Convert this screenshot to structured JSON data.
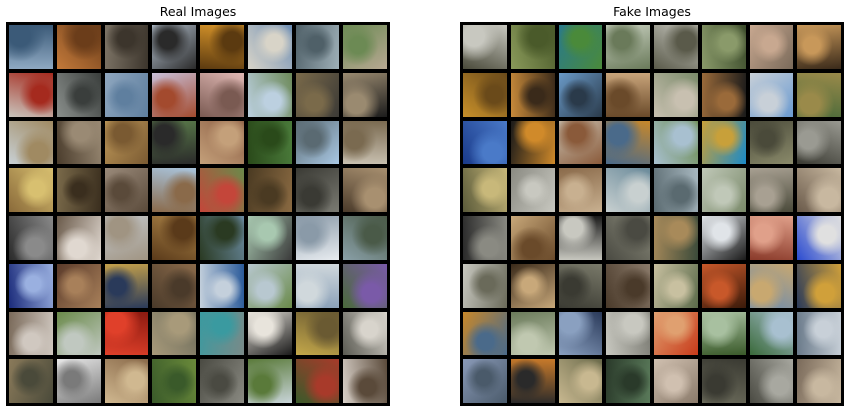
{
  "panels": [
    {
      "title": "Real Images",
      "tiles": [
        [
          "#8fa9c2",
          "#3b5a78"
        ],
        [
          "#c47a3a",
          "#6b3d1a"
        ],
        [
          "#7d7466",
          "#3c352c"
        ],
        [
          "#b9c6d4",
          "#2a2a2a"
        ],
        [
          "#d9962a",
          "#5b3a10"
        ],
        [
          "#6f8fb5",
          "#d8d4c8"
        ],
        [
          "#9fb0b8",
          "#4f6068"
        ],
        [
          "#b7a892",
          "#6c8a54"
        ],
        [
          "#c9c4bc",
          "#a52a1e"
        ],
        [
          "#8a8f8c",
          "#3a3e3c"
        ],
        [
          "#8fa7bf",
          "#5f7f9f"
        ],
        [
          "#c8bfd8",
          "#a34a2e"
        ],
        [
          "#e0b8b4",
          "#7a5a52"
        ],
        [
          "#6d8a5a",
          "#bcd0e0"
        ],
        [
          "#3c3a36",
          "#7a6a4a"
        ],
        [
          "#1c1c1c",
          "#9a8a70"
        ],
        [
          "#c8d0d4",
          "#a08a62"
        ],
        [
          "#4a3c2c",
          "#9a8a74"
        ],
        [
          "#c09a5a",
          "#7a5a32"
        ],
        [
          "#5a7a4a",
          "#2a2a2a"
        ],
        [
          "#8a5c42",
          "#c4a07a"
        ],
        [
          "#4a7a3a",
          "#2a4a1a"
        ],
        [
          "#a9c8e4",
          "#5a6a72"
        ],
        [
          "#c8c0b0",
          "#7a6a50"
        ],
        [
          "#8a6a3a",
          "#d8c070"
        ],
        [
          "#7a6a4a",
          "#3a2e1e"
        ],
        [
          "#9a8a7a",
          "#5a4a3a"
        ],
        [
          "#a9c4dc",
          "#8a6a4a"
        ],
        [
          "#6a8a4a",
          "#c4463a"
        ],
        [
          "#8a6a42",
          "#4a3a22"
        ],
        [
          "#7a7a72",
          "#3a3a34"
        ],
        [
          "#4a3a2a",
          "#a89070"
        ],
        [
          "#2a2a2a",
          "#8a8a8a"
        ],
        [
          "#6a5a4a",
          "#e0d8d0"
        ],
        [
          "#c4c8cc",
          "#a09482"
        ],
        [
          "#b0884a",
          "#5a3a1a"
        ],
        [
          "#6a8aa0",
          "#2a3a22"
        ],
        [
          "#3a3a3a",
          "#a8c8b0"
        ],
        [
          "#e8ecf0",
          "#8a9aa8"
        ],
        [
          "#8aa0a8",
          "#4a5a48"
        ],
        [
          "#1a2a7a",
          "#9ab0e0"
        ],
        [
          "#5a3a2a",
          "#a8805a"
        ],
        [
          "#c4a04a",
          "#2a3a5a"
        ],
        [
          "#8a6a4a",
          "#4a3a2a"
        ],
        [
          "#2a5a9a",
          "#c4d0dc"
        ],
        [
          "#6a8a4a",
          "#b8c8d0"
        ],
        [
          "#8aa0b8",
          "#d0d8dc"
        ],
        [
          "#4a6a3a",
          "#7a5aa8"
        ],
        [
          "#7a6a5a",
          "#d0c8c0"
        ],
        [
          "#6a8a4a",
          "#c0c8c0"
        ],
        [
          "#8a1a10",
          "#e0402a"
        ],
        [
          "#6a6a5a",
          "#a89a7a"
        ],
        [
          "#7a8a88",
          "#3a9aa0"
        ],
        [
          "#1a1a1a",
          "#e8e4dc"
        ],
        [
          "#c4a84a",
          "#6a5a32"
        ],
        [
          "#5a5a52",
          "#d8d4cc"
        ],
        [
          "#8a7a5a",
          "#4a4a3a"
        ],
        [
          "#e8e8e8",
          "#7a7a7a"
        ],
        [
          "#8a6a4a",
          "#d0b890"
        ],
        [
          "#6a8a3a",
          "#3a5a2a"
        ],
        [
          "#8a8a82",
          "#4a4a42"
        ],
        [
          "#c8d4d8",
          "#5a7a3a"
        ],
        [
          "#3a5a2a",
          "#a83a2a"
        ],
        [
          "#d8d0c8",
          "#5a4a3a"
        ]
      ]
    },
    {
      "title": "Fake Images",
      "tiles": [
        [
          "#4a4a3a",
          "#c8c8c0"
        ],
        [
          "#8a9a5a",
          "#4a5a2a"
        ],
        [
          "#2a7a8a",
          "#4a8a3a"
        ],
        [
          "#c8d0c0",
          "#6a7a5a"
        ],
        [
          "#c8c8c0",
          "#5a5a4a"
        ],
        [
          "#3a4a2a",
          "#8a9a6a"
        ],
        [
          "#7a6a5a",
          "#c8a890"
        ],
        [
          "#3a2a1a",
          "#c8985a"
        ],
        [
          "#c8902a",
          "#6a4a1a"
        ],
        [
          "#c88a3a",
          "#3a2a1a"
        ],
        [
          "#6a9ac8",
          "#2a3a4a"
        ],
        [
          "#c8a47a",
          "#6a4a2a"
        ],
        [
          "#7a8a6a",
          "#c8c0b0"
        ],
        [
          "#1a1a1a",
          "#9a6a3a"
        ],
        [
          "#6a9ad0",
          "#c8d0d8"
        ],
        [
          "#4a6a3a",
          "#9a8a4a"
        ],
        [
          "#1a3a8a",
          "#4a7ac8"
        ],
        [
          "#1a1a1a",
          "#d08a2a"
        ],
        [
          "#c8c0b0",
          "#8a5a3a"
        ],
        [
          "#c8882a",
          "#4a6a8a"
        ],
        [
          "#6a8a4a",
          "#a8c0d0"
        ],
        [
          "#1a8ac8",
          "#c8a03a"
        ],
        [
          "#8a8a6a",
          "#4a4a3a"
        ],
        [
          "#3a3a32",
          "#9a9a92"
        ],
        [
          "#5a5a3a",
          "#c8b87a"
        ],
        [
          "#8a8a82",
          "#c8c8c0"
        ],
        [
          "#8a6a4a",
          "#c8b090"
        ],
        [
          "#6a8a9a",
          "#c8d0d0"
        ],
        [
          "#a8b8c0",
          "#5a6a70"
        ],
        [
          "#7a8a6a",
          "#c0c8b8"
        ],
        [
          "#4a4a3a",
          "#a8a092"
        ],
        [
          "#6a5a4a",
          "#c8b8a0"
        ],
        [
          "#2a2a2a",
          "#8a8a82"
        ],
        [
          "#c8a87a",
          "#6a4a2a"
        ],
        [
          "#1a1a1a",
          "#c8c8c0"
        ],
        [
          "#8a8a7a",
          "#4a4a42"
        ],
        [
          "#3a4a3a",
          "#a88a5a"
        ],
        [
          "#1a1a1a",
          "#e0e4e8"
        ],
        [
          "#8a3a2a",
          "#e0a08a"
        ],
        [
          "#2a4ad0",
          "#e0e0e0"
        ],
        [
          "#c8c8c0",
          "#6a6a5a"
        ],
        [
          "#3a2a1a",
          "#c8a87a"
        ],
        [
          "#7a7a6a",
          "#3a3a32"
        ],
        [
          "#8a7a6a",
          "#4a3a2a"
        ],
        [
          "#5a6a4a",
          "#c8c0a0"
        ],
        [
          "#3a1a0a",
          "#c8582a"
        ],
        [
          "#6a8ab0",
          "#c8a870"
        ],
        [
          "#2a3a5a",
          "#d0a03a"
        ],
        [
          "#c8882a",
          "#4a6a8a"
        ],
        [
          "#6a7a5a",
          "#c0c8b0"
        ],
        [
          "#2a3a5a",
          "#8aa0c0"
        ],
        [
          "#7a7a72",
          "#c8c8c0"
        ],
        [
          "#c83a1a",
          "#e0a070"
        ],
        [
          "#3a5a2a",
          "#a8c0a0"
        ],
        [
          "#3a6a3a",
          "#a8c0d0"
        ],
        [
          "#6a7a8a",
          "#c8d0d8"
        ],
        [
          "#8a9ab8",
          "#4a5a6a"
        ],
        [
          "#c87a2a",
          "#2a2a2a"
        ],
        [
          "#6a6a4a",
          "#c8b890"
        ],
        [
          "#5a7a5a",
          "#2a3a2a"
        ],
        [
          "#8a7a6a",
          "#d0c0b0"
        ],
        [
          "#6a6a5a",
          "#3a3a32"
        ],
        [
          "#4a4a42",
          "#a8a8a0"
        ],
        [
          "#7a6a5a",
          "#c8b8a0"
        ]
      ]
    }
  ]
}
